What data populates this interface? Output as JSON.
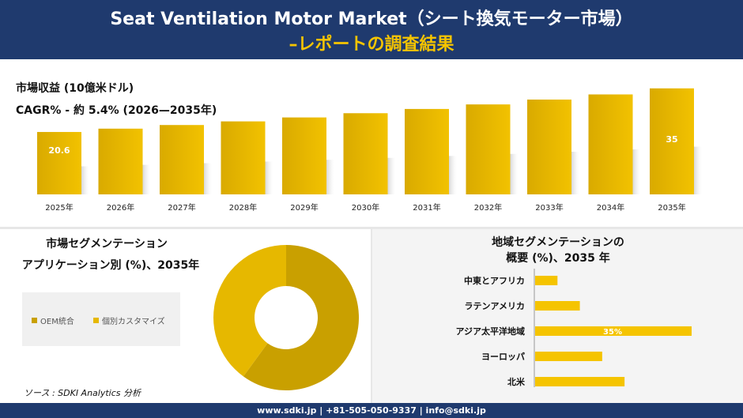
{
  "header": {
    "title_line1": "Seat Ventilation Motor Market（シート換気モーター市場）",
    "title_line2": "–レポートの調査結果"
  },
  "metrics": {
    "revenue_label": "市場収益 (10億米ドル)",
    "cagr_label": "CAGR% - 約 5.4% (2026—2035年)"
  },
  "colors": {
    "navy": "#1f3a6e",
    "gold_dark": "#c9a000",
    "gold": "#e0b400",
    "gold_light": "#f5c400"
  },
  "chart_data": [
    {
      "type": "bar",
      "categories": [
        "2025年",
        "2026年",
        "2027年",
        "2028年",
        "2029年",
        "2030年",
        "2031年",
        "2032年",
        "2033年",
        "2034年",
        "2035年"
      ],
      "values": [
        20.6,
        21.7,
        22.9,
        24.1,
        25.4,
        26.8,
        28.2,
        29.7,
        31.3,
        33.0,
        35
      ],
      "data_labels": {
        "0": "20.6",
        "10": "35"
      },
      "ylim": [
        0,
        36
      ]
    },
    {
      "type": "pie",
      "title_line1": "市場セグメンテーション",
      "title_line2": "アプリケーション別 (%)、2035年",
      "categories": [
        "OEM統合",
        "個別カスタマイズ"
      ],
      "values": [
        60,
        40
      ],
      "colors": [
        "#c9a000",
        "#e6b800"
      ]
    },
    {
      "type": "bar",
      "orientation": "horizontal",
      "title_line1": "地域セグメンテーションの",
      "title_line2": "概要 (%)、2035 年",
      "categories": [
        "中東とアフリカ",
        "ラテンアメリカ",
        "アジア太平洋地域",
        "ヨーロッパ",
        "北米"
      ],
      "values": [
        5,
        10,
        35,
        15,
        20
      ],
      "data_labels": {
        "2": "35%"
      },
      "xlim": [
        0,
        35
      ]
    }
  ],
  "source": "ソース : SDKI Analytics 分析",
  "footer": "www.sdki.jp | +81-505-050-9337 | info@sdki.jp"
}
